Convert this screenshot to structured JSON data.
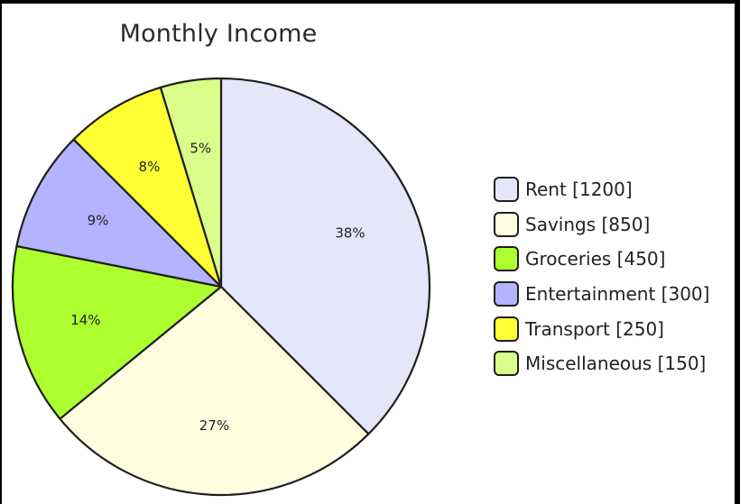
{
  "chart_data": {
    "type": "pie",
    "title": "Monthly Income",
    "start_angle": "top",
    "direction": "clockwise",
    "legend_position": "right",
    "slices": [
      {
        "label": "Rent",
        "value": 1200,
        "percent_label": "38%",
        "legend_label": "Rent [1200]",
        "color": "#e6e6fa"
      },
      {
        "label": "Savings",
        "value": 850,
        "percent_label": "27%",
        "legend_label": "Savings [850]",
        "color": "#fffde0"
      },
      {
        "label": "Groceries",
        "value": 450,
        "percent_label": "14%",
        "legend_label": "Groceries [450]",
        "color": "#adff2f"
      },
      {
        "label": "Entertainment",
        "value": 300,
        "percent_label": "9%",
        "legend_label": "Entertainment [300]",
        "color": "#b3b3ff"
      },
      {
        "label": "Transport",
        "value": 250,
        "percent_label": "8%",
        "legend_label": "Transport [250]",
        "color": "#ffff33"
      },
      {
        "label": "Miscellaneous",
        "value": 150,
        "percent_label": "5%",
        "legend_label": "Miscellaneous [150]",
        "color": "#d9ff8a"
      }
    ]
  }
}
